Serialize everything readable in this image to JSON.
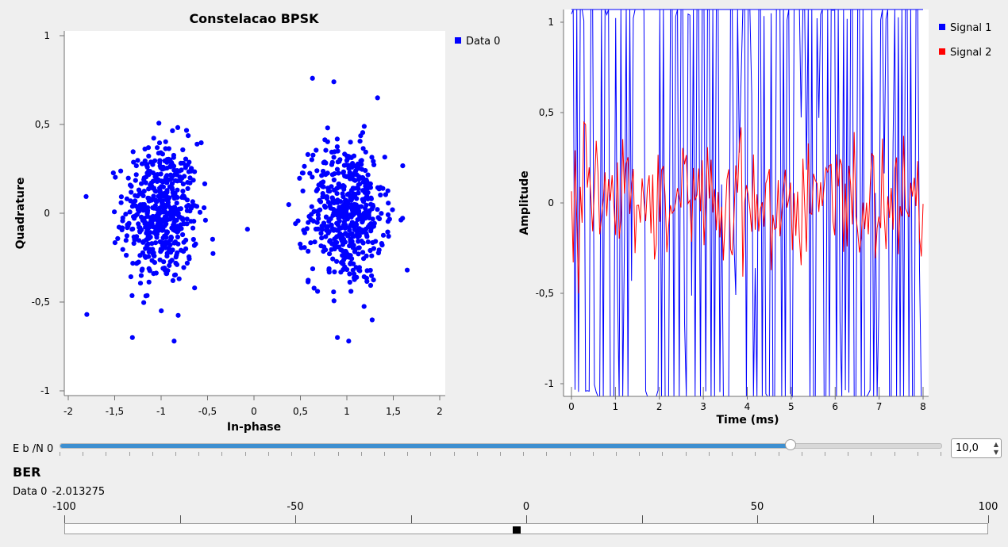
{
  "constellation": {
    "chart_data": {
      "type": "scatter",
      "title": "Constelacao BPSK",
      "xlabel": "In-phase",
      "ylabel": "Quadrature",
      "xlim": [
        -2,
        2
      ],
      "ylim": [
        -1,
        1
      ],
      "xticks": [
        "-2",
        "-1,5",
        "-1",
        "-0,5",
        "0",
        "0,5",
        "1",
        "1,5",
        "2"
      ],
      "yticks": [
        "-1",
        "-0,5",
        "0",
        "0,5",
        "1"
      ],
      "legend_placement": "top-right",
      "grid": false,
      "series": [
        {
          "name": "Data 0",
          "color": "#0000ff",
          "clusters": [
            {
              "center": [
                -1,
                0
              ],
              "std_x": 0.2,
              "std_y": 0.2,
              "count": 520
            },
            {
              "center": [
                1,
                0
              ],
              "std_x": 0.2,
              "std_y": 0.2,
              "count": 520
            }
          ],
          "outliers": [
            [
              -1.8,
              -0.57
            ],
            [
              -0.07,
              -0.09
            ],
            [
              1.65,
              -0.32
            ],
            [
              0.63,
              0.76
            ],
            [
              -0.86,
              -0.72
            ],
            [
              0.86,
              0.74
            ],
            [
              1.02,
              -0.72
            ]
          ]
        }
      ]
    }
  },
  "timeplot": {
    "chart_data": {
      "type": "line",
      "xlabel": "Time (ms)",
      "ylabel": "Amplitude",
      "xlim": [
        0,
        8
      ],
      "ylim": [
        -1,
        1
      ],
      "xticks": [
        "0",
        "1",
        "2",
        "3",
        "4",
        "5",
        "6",
        "7",
        "8"
      ],
      "yticks": [
        "-1",
        "-0,5",
        "0",
        "0,5",
        "1"
      ],
      "legend_placement": "top-right",
      "grid": false,
      "series": [
        {
          "name": "Signal 1",
          "color": "#0000ff",
          "kind": "random bipolar bits, clipped to ±1",
          "samples": 200
        },
        {
          "name": "Signal 2",
          "color": "#ff0000",
          "kind": "noise around 0, amplitude about ±0.5",
          "samples": 200
        }
      ]
    }
  },
  "ebn0": {
    "label": "E b /N 0",
    "slider_fraction": 0.83,
    "value": "10,0"
  },
  "ber": {
    "title": "BER",
    "series_label": "Data 0",
    "value": "-2.013275",
    "scale_min": -100,
    "scale_max": 100,
    "scale_labels": [
      "-100",
      "-50",
      "0",
      "50",
      "100"
    ],
    "indicator_value": -2.013275
  },
  "icons": {
    "spin_up": "spin-up-arrow-icon",
    "spin_down": "spin-down-arrow-icon"
  }
}
